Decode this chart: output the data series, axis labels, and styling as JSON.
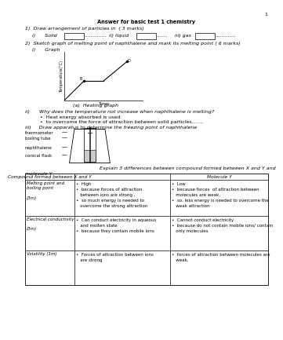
{
  "page_number": "1",
  "title": "Answer for basic test 1 chemistry",
  "q1_text": "1)  Draw arrangement of particles in  ( 3 marks)",
  "q2_text": "2)  Sketch graph of melting point of naphthalene and mark its melting point ( 6 marks)",
  "q2_sub_i": "i)      Graph",
  "graph_label_x": "Times",
  "graph_label_y": "Temperature(°C)",
  "graph_caption": "(a)  Heating graph",
  "q2_sub_ii": "ii)      Why does the temperature not increase when naphthalene is melting?",
  "q2_bullets_ii": [
    "Heat energy absorbed is used",
    "to overcome the force of attraction between solid particles……."
  ],
  "q2_sub_iii": "iii)     Draw apparatus to determine the freezing point of naphthalene",
  "apparatus_labels": [
    "thermometer",
    "boiling tube",
    "naphthalene",
    "conical flask"
  ],
  "explain_text": "Explain 3 differences between compound formed between X and Y and",
  "molecule_y_label": "molecule Y",
  "table_col1": "Compound formed between X and Y",
  "table_col2": "Molecule Y",
  "row1_header": "Melting point and\nboiling point\n\n(3m)",
  "row1_col1_lines": [
    "•  High",
    "•  because forces of attraction",
    "   between ions are strong ,",
    "•  so much energy is needed to",
    "   overcome the strong attraction"
  ],
  "row1_col2_lines": [
    "•  Low",
    "•  because forces  of attraction between",
    "   molecules are weak,",
    "•  so, less energy is needed to overcome the",
    "   weak attraction"
  ],
  "row2_header": "Electrical conductivity\n\n(3m)",
  "row2_col1_lines": [
    "•  Can conduct electricity in aqueous",
    "   and molten state",
    "•  because they contain mobile ions"
  ],
  "row2_col2_lines": [
    "•  Cannot conduct electricity",
    "•  because do not contain mobile ions/ contain",
    "   only molecules"
  ],
  "row3_header": "Volatility (1m)",
  "row3_col1_lines": [
    "•  Forces of attraction between ions",
    "   are strong"
  ],
  "row3_col2_lines": [
    "•  forces of attraction between molecules are",
    "   weak,"
  ],
  "bg_color": "#ffffff",
  "text_color": "#000000"
}
